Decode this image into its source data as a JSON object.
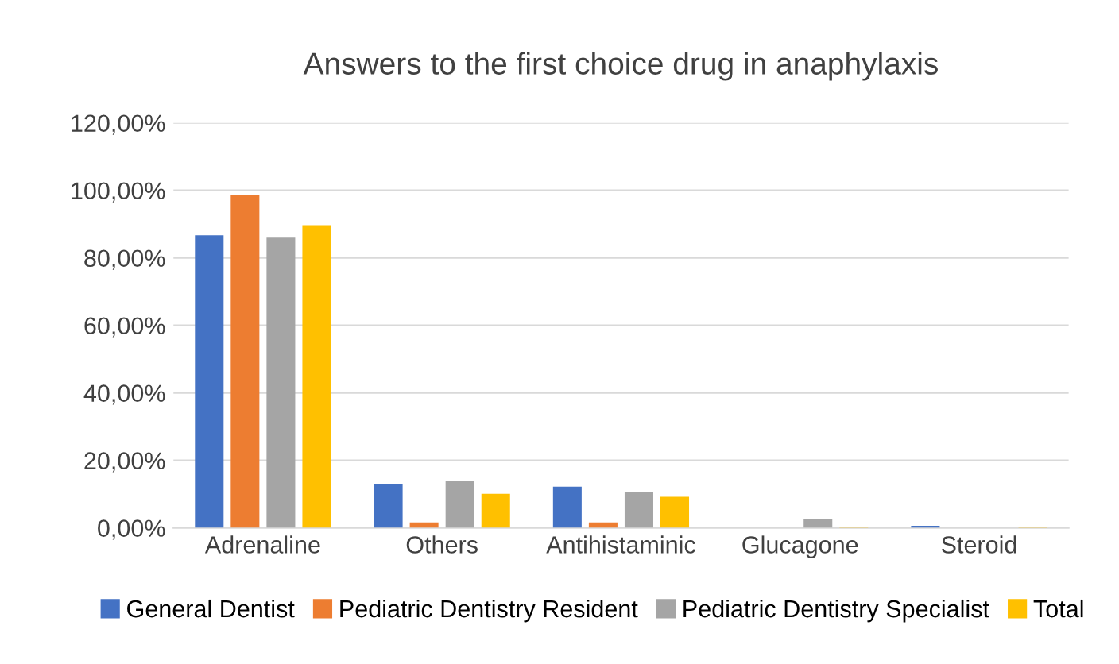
{
  "chart_data": {
    "type": "bar",
    "title": "Answers to the first choice drug in anaphylaxis",
    "categories": [
      "Adrenaline",
      "Others",
      "Antihistaminic",
      "Glucagone",
      "Steroid"
    ],
    "series": [
      {
        "name": "General Dentist",
        "color": "#4472c4",
        "values": [
          86.7,
          13.1,
          12.2,
          0,
          0.6
        ]
      },
      {
        "name": "Pediatric Dentistry Resident",
        "color": "#ed7d31",
        "values": [
          98.5,
          1.6,
          1.6,
          0,
          0
        ]
      },
      {
        "name": "Pediatric Dentistry Specialist",
        "color": "#a5a5a5",
        "values": [
          86.0,
          13.9,
          10.7,
          2.5,
          0
        ]
      },
      {
        "name": "Total",
        "color": "#ffc000",
        "values": [
          89.7,
          10.1,
          9.2,
          0.3,
          0.3
        ]
      }
    ],
    "ylim": [
      0,
      120
    ],
    "yticks": [
      {
        "value": 0,
        "label": "0,00%"
      },
      {
        "value": 20,
        "label": "20,00%"
      },
      {
        "value": 40,
        "label": "40,00%"
      },
      {
        "value": 60,
        "label": "60,00%"
      },
      {
        "value": 80,
        "label": "80,00%"
      },
      {
        "value": 100,
        "label": "100,00%"
      },
      {
        "value": 120,
        "label": "120,00%"
      }
    ],
    "grid": "y",
    "legend": "bottom"
  }
}
